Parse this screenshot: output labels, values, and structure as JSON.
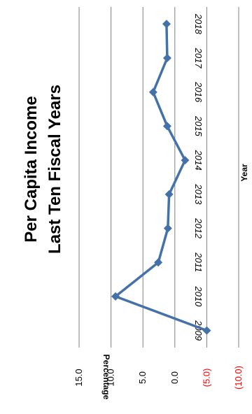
{
  "chart_data": {
    "type": "line",
    "title_line1": "Per Capita Income",
    "title_line2": "Last Ten Fiscal Years",
    "xlabel": "Year",
    "ylabel": "Percentage",
    "categories": [
      "2009",
      "2010",
      "2011",
      "2012",
      "2013",
      "2014",
      "2015",
      "2016",
      "2017",
      "2018"
    ],
    "values": [
      -5.0,
      9.3,
      2.6,
      1.1,
      0.9,
      -1.6,
      1.2,
      3.4,
      1.2,
      1.3
    ],
    "ylim": [
      -10,
      15
    ],
    "yticks": [
      {
        "value": 15,
        "label": "15.0"
      },
      {
        "value": 10,
        "label": "10.0"
      },
      {
        "value": 5,
        "label": "5.0"
      },
      {
        "value": 0,
        "label": "0.0"
      },
      {
        "value": -5,
        "label": "(5.0)"
      },
      {
        "value": -10,
        "label": "(10.0)"
      }
    ],
    "grid": true,
    "rotation": "90deg-clockwise",
    "colors": {
      "line": "#4472A8",
      "marker": "#4472A8",
      "grid": "#808080",
      "negative_tick": "#FF0000",
      "positive_tick": "#000000"
    }
  }
}
